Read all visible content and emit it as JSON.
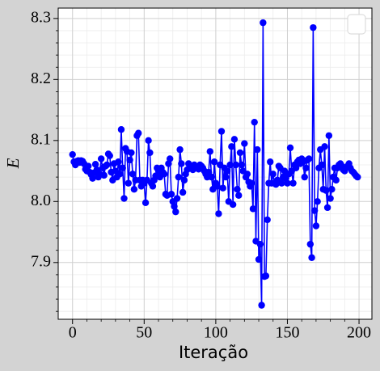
{
  "chart_data": {
    "type": "line",
    "xlabel": "Iteração",
    "ylabel": "E",
    "color": "#0000ff",
    "grid": true,
    "legend": "upper right",
    "xlim": [
      -10,
      209
    ],
    "ylim": [
      7.807,
      8.317
    ],
    "xticks": [
      0,
      50,
      100,
      150,
      200
    ],
    "yticks": [
      7.9,
      {
        "value": 8,
        "label": "8.0"
      },
      8.1,
      8.2,
      8.3
    ],
    "xminorticks": [
      10,
      20,
      30,
      40,
      60,
      70,
      80,
      90,
      110,
      120,
      130,
      140,
      160,
      170,
      180,
      190
    ],
    "yminorticks": [
      7.82,
      7.84,
      7.86,
      7.88,
      7.92,
      7.94,
      7.96,
      7.98,
      8.02,
      8.04,
      8.06,
      8.08,
      8.12,
      8.14,
      8.16,
      8.18,
      8.22,
      8.24,
      8.26,
      8.28
    ],
    "x": [
      0,
      1,
      2,
      3,
      4,
      5,
      6,
      7,
      8,
      9,
      10,
      11,
      12,
      13,
      14,
      15,
      16,
      17,
      18,
      19,
      20,
      21,
      22,
      23,
      24,
      25,
      26,
      27,
      28,
      29,
      30,
      31,
      32,
      33,
      34,
      35,
      36,
      37,
      38,
      39,
      40,
      41,
      42,
      43,
      44,
      45,
      46,
      47,
      48,
      49,
      50,
      51,
      52,
      53,
      54,
      55,
      56,
      57,
      58,
      59,
      60,
      61,
      62,
      63,
      64,
      65,
      66,
      67,
      68,
      69,
      70,
      71,
      72,
      73,
      74,
      75,
      76,
      77,
      78,
      79,
      80,
      81,
      82,
      83,
      84,
      85,
      86,
      87,
      88,
      89,
      90,
      91,
      92,
      93,
      94,
      95,
      96,
      97,
      98,
      99,
      100,
      101,
      102,
      103,
      104,
      105,
      106,
      107,
      108,
      109,
      110,
      111,
      112,
      113,
      114,
      115,
      116,
      117,
      118,
      119,
      120,
      121,
      122,
      123,
      124,
      125,
      126,
      127,
      128,
      129,
      130,
      131,
      132,
      133,
      134,
      135,
      136,
      137,
      138,
      139,
      140,
      141,
      142,
      143,
      144,
      145,
      146,
      147,
      148,
      149,
      150,
      151,
      152,
      153,
      154,
      155,
      156,
      157,
      158,
      159,
      160,
      161,
      162,
      163,
      164,
      165,
      166,
      167,
      168,
      169,
      170,
      171,
      172,
      173,
      174,
      175,
      176,
      177,
      178,
      179,
      180,
      181,
      182,
      183,
      184,
      185,
      186,
      187,
      188,
      189,
      190,
      191,
      192,
      193,
      194,
      195,
      196,
      197,
      198,
      199
    ],
    "values": [
      8.077,
      8.065,
      8.06,
      8.066,
      8.067,
      8.064,
      8.067,
      8.066,
      8.062,
      8.053,
      8.05,
      8.058,
      8.048,
      8.044,
      8.038,
      8.047,
      8.061,
      8.052,
      8.04,
      8.045,
      8.07,
      8.055,
      8.043,
      8.058,
      8.06,
      8.078,
      8.075,
      8.048,
      8.035,
      8.062,
      8.05,
      8.04,
      8.065,
      8.045,
      8.118,
      8.055,
      8.005,
      8.087,
      8.082,
      8.03,
      8.068,
      8.08,
      8.045,
      8.02,
      8.035,
      8.108,
      8.112,
      8.035,
      8.025,
      8.035,
      8.03,
      7.998,
      8.035,
      8.1,
      8.08,
      8.03,
      8.025,
      8.035,
      8.042,
      8.055,
      8.05,
      8.04,
      8.055,
      8.048,
      8.045,
      8.012,
      8.01,
      8.062,
      8.07,
      8.012,
      8.0,
      7.992,
      7.983,
      8.005,
      8.04,
      8.085,
      8.062,
      8.015,
      8.035,
      8.045,
      8.052,
      8.062,
      8.058,
      8.055,
      8.052,
      8.06,
      8.058,
      8.055,
      8.053,
      8.06,
      8.058,
      8.055,
      8.05,
      8.045,
      8.04,
      8.048,
      8.082,
      8.04,
      8.02,
      8.065,
      8.03,
      8.025,
      7.98,
      8.06,
      8.115,
      8.022,
      8.055,
      8.04,
      8.05,
      8.0,
      8.06,
      8.09,
      7.995,
      8.102,
      8.06,
      8.02,
      8.01,
      8.08,
      8.06,
      8.05,
      8.095,
      8.04,
      8.045,
      8.032,
      8.025,
      8.03,
      7.988,
      8.13,
      7.935,
      8.085,
      7.905,
      7.93,
      7.83,
      8.293,
      7.877,
      7.878,
      7.97,
      8.03,
      8.065,
      8.03,
      8.045,
      8.03,
      8.028,
      8.035,
      8.058,
      8.055,
      8.03,
      8.04,
      8.05,
      8.038,
      8.03,
      8.045,
      8.088,
      8.05,
      8.03,
      8.06,
      8.055,
      8.065,
      8.068,
      8.062,
      8.07,
      8.065,
      8.04,
      8.055,
      8.068,
      8.07,
      7.93,
      7.908,
      8.285,
      7.985,
      7.96,
      8.0,
      8.055,
      8.085,
      8.06,
      8.02,
      8.09,
      8.018,
      7.99,
      8.108,
      8.005,
      8.02,
      8.04,
      8.055,
      8.035,
      8.055,
      8.06,
      8.062,
      8.058,
      8.052,
      8.05,
      8.055,
      8.058,
      8.062,
      8.055,
      8.05,
      8.048,
      8.045,
      8.042,
      8.04
    ]
  }
}
